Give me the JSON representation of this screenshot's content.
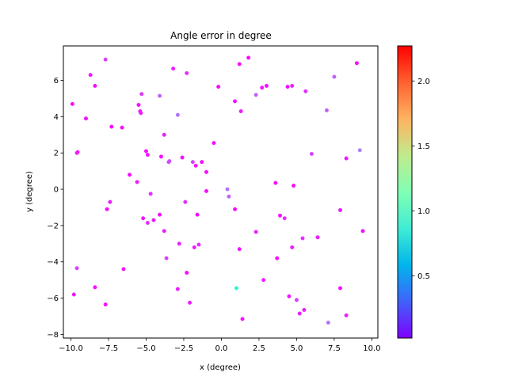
{
  "chart_data": {
    "type": "scatter",
    "title": "Angle error in degree",
    "xlabel": "x (degree)",
    "ylabel": "y (degree)",
    "xlim": [
      -10.5,
      10.4
    ],
    "ylim": [
      -8.2,
      7.9
    ],
    "xticks": [
      -10.0,
      -7.5,
      -5.0,
      -2.5,
      0.0,
      2.5,
      5.0,
      7.5,
      10.0
    ],
    "xtick_labels": [
      "−10.0",
      "−7.5",
      "−5.0",
      "−2.5",
      "0.0",
      "2.5",
      "5.0",
      "7.5",
      "10.0"
    ],
    "yticks": [
      -8,
      -6,
      -4,
      -2,
      0,
      2,
      4,
      6
    ],
    "ytick_labels": [
      "−8",
      "−6",
      "−4",
      "−2",
      "0",
      "2",
      "4",
      "6"
    ],
    "grid": false,
    "colormap": "rainbow",
    "colorbar": {
      "range": [
        0.02,
        2.27
      ],
      "ticks": [
        0.5,
        1.0,
        1.5,
        2.0
      ],
      "tick_labels": [
        "0.5",
        "1.0",
        "1.5",
        "2.0"
      ]
    },
    "points": [
      {
        "x": -9.9,
        "y": 4.7,
        "c": 0.05
      },
      {
        "x": -9.6,
        "y": 2.0,
        "c": 0.1
      },
      {
        "x": -9.55,
        "y": 2.05,
        "c": 0.1
      },
      {
        "x": -9.0,
        "y": 3.9,
        "c": 0.05
      },
      {
        "x": -8.7,
        "y": 6.3,
        "c": 0.08
      },
      {
        "x": -8.4,
        "y": 5.7,
        "c": 0.05
      },
      {
        "x": -7.7,
        "y": 7.15,
        "c": 0.2
      },
      {
        "x": -7.3,
        "y": 3.45,
        "c": 0.05
      },
      {
        "x": -6.6,
        "y": 3.4,
        "c": 0.05
      },
      {
        "x": -6.1,
        "y": 0.8,
        "c": 0.05
      },
      {
        "x": -5.6,
        "y": 0.4,
        "c": 0.1
      },
      {
        "x": -5.5,
        "y": 4.65,
        "c": 0.05
      },
      {
        "x": -5.4,
        "y": 4.3,
        "c": 0.1
      },
      {
        "x": -5.35,
        "y": 4.2,
        "c": 0.1
      },
      {
        "x": -5.3,
        "y": 5.25,
        "c": 0.15
      },
      {
        "x": -5.0,
        "y": 2.1,
        "c": 0.05
      },
      {
        "x": -4.9,
        "y": 1.9,
        "c": 0.1
      },
      {
        "x": -4.7,
        "y": -0.25,
        "c": 0.15
      },
      {
        "x": -4.1,
        "y": 5.15,
        "c": 0.3
      },
      {
        "x": -4.0,
        "y": 1.8,
        "c": 0.05
      },
      {
        "x": -3.8,
        "y": 3.0,
        "c": 0.1
      },
      {
        "x": -3.5,
        "y": 1.5,
        "c": 0.2
      },
      {
        "x": -3.45,
        "y": 1.55,
        "c": 0.25
      },
      {
        "x": -3.2,
        "y": 6.65,
        "c": 0.1
      },
      {
        "x": -2.9,
        "y": 4.1,
        "c": 0.35
      },
      {
        "x": -2.6,
        "y": 1.75,
        "c": 0.05
      },
      {
        "x": -2.3,
        "y": 6.4,
        "c": 0.15
      },
      {
        "x": -1.9,
        "y": 1.5,
        "c": 0.2
      },
      {
        "x": -1.7,
        "y": 1.3,
        "c": 0.05
      },
      {
        "x": -1.3,
        "y": 1.5,
        "c": 0.05
      },
      {
        "x": -1.0,
        "y": 0.95,
        "c": 0.05
      },
      {
        "x": -0.5,
        "y": 2.55,
        "c": 0.05
      },
      {
        "x": -0.2,
        "y": 5.65,
        "c": 0.05
      },
      {
        "x": 0.9,
        "y": 4.85,
        "c": 0.05
      },
      {
        "x": 1.2,
        "y": 6.9,
        "c": 0.05
      },
      {
        "x": 1.3,
        "y": 4.3,
        "c": 0.1
      },
      {
        "x": 1.8,
        "y": 7.25,
        "c": 0.05
      },
      {
        "x": 2.3,
        "y": 5.2,
        "c": 0.3
      },
      {
        "x": 2.7,
        "y": 5.6,
        "c": 0.08
      },
      {
        "x": 3.0,
        "y": 5.7,
        "c": 0.05
      },
      {
        "x": 3.6,
        "y": 0.35,
        "c": 0.05
      },
      {
        "x": 4.4,
        "y": 5.65,
        "c": 0.05
      },
      {
        "x": 4.7,
        "y": 5.7,
        "c": 0.1
      },
      {
        "x": 5.6,
        "y": 5.4,
        "c": 0.15
      },
      {
        "x": 6.0,
        "y": 1.95,
        "c": 0.2
      },
      {
        "x": 7.0,
        "y": 4.35,
        "c": 0.3
      },
      {
        "x": 7.5,
        "y": 6.2,
        "c": 0.3
      },
      {
        "x": 8.3,
        "y": 1.7,
        "c": 0.08
      },
      {
        "x": 9.0,
        "y": 6.95,
        "c": 0.05
      },
      {
        "x": 9.2,
        "y": 2.15,
        "c": 0.4
      },
      {
        "x": 4.8,
        "y": 0.2,
        "c": 0.05
      },
      {
        "x": -7.6,
        "y": -1.1,
        "c": 0.05
      },
      {
        "x": -7.4,
        "y": -0.7,
        "c": 0.1
      },
      {
        "x": -5.2,
        "y": -1.6,
        "c": 0.08
      },
      {
        "x": -4.9,
        "y": -1.85,
        "c": 0.15
      },
      {
        "x": -4.5,
        "y": -1.7,
        "c": 0.08
      },
      {
        "x": -4.1,
        "y": -1.4,
        "c": 0.05
      },
      {
        "x": -3.8,
        "y": -2.3,
        "c": 0.1
      },
      {
        "x": -3.65,
        "y": -3.8,
        "c": 0.2
      },
      {
        "x": -2.8,
        "y": -3.0,
        "c": 0.1
      },
      {
        "x": -2.4,
        "y": -0.7,
        "c": 0.15
      },
      {
        "x": -1.8,
        "y": -3.2,
        "c": 0.1
      },
      {
        "x": -1.5,
        "y": -3.05,
        "c": 0.15
      },
      {
        "x": -1.6,
        "y": -1.4,
        "c": 0.05
      },
      {
        "x": -1.0,
        "y": -0.1,
        "c": 0.05
      },
      {
        "x": 0.4,
        "y": 0.0,
        "c": 0.35
      },
      {
        "x": 0.5,
        "y": -0.4,
        "c": 0.3
      },
      {
        "x": 0.9,
        "y": -1.1,
        "c": 0.05
      },
      {
        "x": 2.3,
        "y": -2.35,
        "c": 0.1
      },
      {
        "x": 3.9,
        "y": -1.45,
        "c": 0.05
      },
      {
        "x": 4.2,
        "y": -1.6,
        "c": 0.15
      },
      {
        "x": 4.7,
        "y": -3.2,
        "c": 0.1
      },
      {
        "x": 5.4,
        "y": -2.7,
        "c": 0.15
      },
      {
        "x": 6.4,
        "y": -2.65,
        "c": 0.1
      },
      {
        "x": 7.9,
        "y": -1.15,
        "c": 0.08
      },
      {
        "x": 9.4,
        "y": -2.3,
        "c": 0.05
      },
      {
        "x": -9.6,
        "y": -4.35,
        "c": 0.2
      },
      {
        "x": -9.8,
        "y": -5.8,
        "c": 0.08
      },
      {
        "x": -8.4,
        "y": -5.4,
        "c": 0.05
      },
      {
        "x": -7.7,
        "y": -6.35,
        "c": 0.05
      },
      {
        "x": -6.5,
        "y": -4.4,
        "c": 0.08
      },
      {
        "x": -2.9,
        "y": -5.5,
        "c": 0.1
      },
      {
        "x": -2.3,
        "y": -4.6,
        "c": 0.05
      },
      {
        "x": -2.1,
        "y": -6.25,
        "c": 0.1
      },
      {
        "x": 1.0,
        "y": -5.45,
        "c": 0.95
      },
      {
        "x": 1.2,
        "y": -3.3,
        "c": 0.08
      },
      {
        "x": 1.4,
        "y": -7.15,
        "c": 0.05
      },
      {
        "x": 2.8,
        "y": -5.0,
        "c": 0.1
      },
      {
        "x": 3.7,
        "y": -3.8,
        "c": 0.05
      },
      {
        "x": 4.5,
        "y": -5.9,
        "c": 0.08
      },
      {
        "x": 5.0,
        "y": -6.1,
        "c": 0.2
      },
      {
        "x": 5.2,
        "y": -6.85,
        "c": 0.1
      },
      {
        "x": 5.5,
        "y": -6.65,
        "c": 0.1
      },
      {
        "x": 7.1,
        "y": -7.35,
        "c": 0.35
      },
      {
        "x": 7.9,
        "y": -5.45,
        "c": 0.05
      },
      {
        "x": 8.3,
        "y": -6.95,
        "c": 0.1
      }
    ]
  }
}
